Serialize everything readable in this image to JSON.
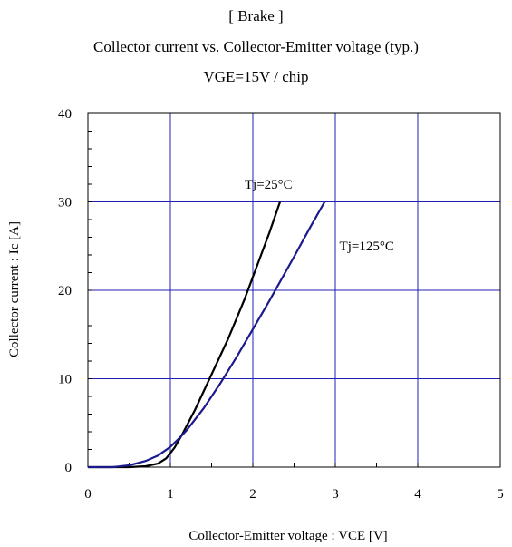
{
  "chart_data": {
    "type": "line",
    "title": "[ Brake ]",
    "subtitle": "Collector current vs. Collector-Emitter voltage (typ.)",
    "condition": "VGE=15V / chip",
    "xlabel": "Collector-Emitter voltage : VCE [V]",
    "ylabel": "Collector current : Ic [A]",
    "xlim": [
      0,
      5
    ],
    "ylim": [
      0,
      40
    ],
    "x_ticks": [
      "0",
      "1",
      "2",
      "3",
      "4",
      "5"
    ],
    "y_ticks": [
      "0",
      "10",
      "20",
      "30",
      "40"
    ],
    "grid": true,
    "series": [
      {
        "name": "Tj=25°C",
        "color": "#000000",
        "points": [
          [
            0,
            0
          ],
          [
            0.5,
            0
          ],
          [
            0.7,
            0.1
          ],
          [
            0.85,
            0.4
          ],
          [
            0.95,
            1.0
          ],
          [
            1.05,
            2.2
          ],
          [
            1.15,
            3.8
          ],
          [
            1.3,
            6.5
          ],
          [
            1.5,
            10.5
          ],
          [
            1.7,
            14.5
          ],
          [
            1.9,
            19.0
          ],
          [
            2.0,
            21.5
          ],
          [
            2.1,
            24.0
          ],
          [
            2.2,
            26.5
          ],
          [
            2.33,
            30.0
          ]
        ]
      },
      {
        "name": "Tj=125°C",
        "color": "#1a1a8c",
        "points": [
          [
            0,
            0
          ],
          [
            0.3,
            0
          ],
          [
            0.5,
            0.2
          ],
          [
            0.7,
            0.7
          ],
          [
            0.85,
            1.3
          ],
          [
            1.0,
            2.3
          ],
          [
            1.1,
            3.2
          ],
          [
            1.2,
            4.2
          ],
          [
            1.4,
            6.6
          ],
          [
            1.6,
            9.4
          ],
          [
            1.8,
            12.4
          ],
          [
            2.0,
            15.6
          ],
          [
            2.2,
            18.8
          ],
          [
            2.5,
            23.8
          ],
          [
            2.7,
            27.2
          ],
          [
            2.87,
            30.0
          ]
        ]
      }
    ],
    "annotations": [
      {
        "text": "Tj=25°C",
        "x": 1.9,
        "y": 31.5
      },
      {
        "text": "Tj=125°C",
        "x": 3.05,
        "y": 24.5
      }
    ]
  }
}
